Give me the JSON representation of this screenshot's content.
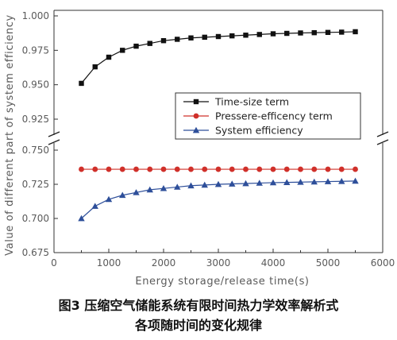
{
  "chart_data": {
    "type": "line",
    "xlabel": "Energy storage/release time(s)",
    "ylabel": "Value of different part of system efficiency",
    "xlim": [
      0,
      6000
    ],
    "xticks": [
      0,
      1000,
      2000,
      3000,
      4000,
      5000,
      6000
    ],
    "y_axis_broken": true,
    "upper_panel": {
      "ylim": [
        0.91,
        1.0
      ],
      "yticks": [
        0.925,
        0.95,
        0.975,
        1.0
      ],
      "tick_labels": [
        "0.925",
        "0.950",
        "0.975",
        "1.000"
      ]
    },
    "lower_panel": {
      "ylim": [
        0.675,
        0.762
      ],
      "yticks": [
        0.675,
        0.7,
        0.725,
        0.75
      ],
      "tick_labels": [
        "0.675",
        "0.700",
        "0.725",
        "0.750"
      ]
    },
    "x": [
      500,
      750,
      1000,
      1250,
      1500,
      1750,
      2000,
      2250,
      2500,
      2750,
      3000,
      3250,
      3500,
      3750,
      4000,
      4250,
      4500,
      4750,
      5000,
      5250,
      5500
    ],
    "series": [
      {
        "name": "Time-size term",
        "panel": "upper",
        "marker": "square",
        "color": "#111111",
        "values": [
          0.951,
          0.963,
          0.97,
          0.975,
          0.978,
          0.98,
          0.982,
          0.983,
          0.984,
          0.9845,
          0.985,
          0.9855,
          0.986,
          0.9865,
          0.987,
          0.9873,
          0.9876,
          0.9878,
          0.988,
          0.9882,
          0.9885
        ]
      },
      {
        "name": "Pressere-efficency term",
        "panel": "lower",
        "marker": "circle",
        "color": "#d0302a",
        "values": [
          0.736,
          0.736,
          0.736,
          0.736,
          0.736,
          0.736,
          0.736,
          0.736,
          0.736,
          0.736,
          0.736,
          0.736,
          0.736,
          0.736,
          0.736,
          0.736,
          0.736,
          0.736,
          0.736,
          0.736,
          0.736
        ]
      },
      {
        "name": "System efficiency",
        "panel": "lower",
        "marker": "triangle",
        "color": "#2e4f9a",
        "values": [
          0.7,
          0.709,
          0.714,
          0.717,
          0.719,
          0.721,
          0.722,
          0.723,
          0.724,
          0.7245,
          0.725,
          0.7253,
          0.7256,
          0.7259,
          0.7262,
          0.7264,
          0.7266,
          0.7268,
          0.727,
          0.7272,
          0.7274
        ]
      }
    ],
    "legend_placement": "center-right"
  },
  "caption": {
    "line1": "图3 压缩空气储能系统有限时间热力学效率解析式",
    "line2": "各项随时间的变化规律"
  }
}
